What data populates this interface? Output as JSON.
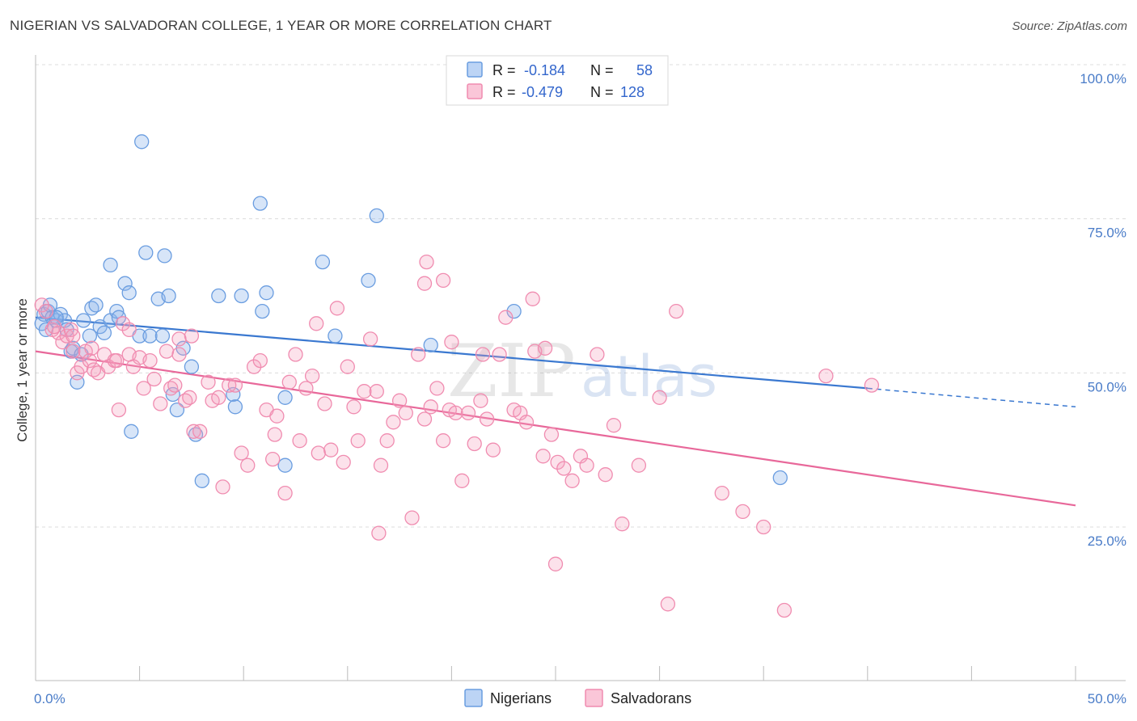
{
  "header": {
    "title": "NIGERIAN VS SALVADORAN COLLEGE, 1 YEAR OR MORE CORRELATION CHART",
    "source": "Source: ZipAtlas.com"
  },
  "watermark": {
    "part1": "ZIP",
    "part2": "atlas"
  },
  "legend": {
    "rows": [
      {
        "r_label": "R =",
        "r_value": "-0.184",
        "n_label": "N =",
        "n_value": "58",
        "color": "#6a9de0"
      },
      {
        "r_label": "R =",
        "r_value": "-0.479",
        "n_label": "N =",
        "n_value": "128",
        "color": "#f08cb0"
      }
    ]
  },
  "bottom_legend": [
    {
      "label": "Nigerians",
      "color": "#6a9de0"
    },
    {
      "label": "Salvadorans",
      "color": "#f08cb0"
    }
  ],
  "chart_data": {
    "type": "scatter",
    "xlabel": "",
    "ylabel": "College, 1 year or more",
    "xlim": [
      0,
      50
    ],
    "ylim": [
      0,
      105
    ],
    "x_tick_labels": [
      "0.0%",
      "50.0%"
    ],
    "y_ticks": [
      25,
      50,
      75,
      100
    ],
    "y_tick_labels": [
      "25.0%",
      "50.0%",
      "75.0%",
      "100.0%"
    ],
    "grid": true,
    "series": [
      {
        "name": "Nigerians",
        "color": "#6a9de0",
        "points": [
          [
            0.3,
            58
          ],
          [
            0.4,
            59.5
          ],
          [
            0.6,
            60
          ],
          [
            0.7,
            61
          ],
          [
            0.8,
            59
          ],
          [
            1,
            58.5
          ],
          [
            1.2,
            59.5
          ],
          [
            1.4,
            58.5
          ],
          [
            1.5,
            57
          ],
          [
            1.7,
            53.5
          ],
          [
            1.8,
            54
          ],
          [
            2,
            48.5
          ],
          [
            2.2,
            53
          ],
          [
            2.3,
            58.5
          ],
          [
            2.6,
            56
          ],
          [
            2.7,
            60.5
          ],
          [
            2.9,
            61
          ],
          [
            3.1,
            57.5
          ],
          [
            3.3,
            56.5
          ],
          [
            3.6,
            58.5
          ],
          [
            3.9,
            60
          ],
          [
            4,
            59
          ],
          [
            4.3,
            64.5
          ],
          [
            4.5,
            63
          ],
          [
            5,
            56
          ],
          [
            5.1,
            87.5
          ],
          [
            5.5,
            56
          ],
          [
            5.9,
            62
          ],
          [
            6.1,
            56
          ],
          [
            6.4,
            62.5
          ],
          [
            6.6,
            46.5
          ],
          [
            6.8,
            44
          ],
          [
            7.1,
            54
          ],
          [
            7.5,
            51
          ],
          [
            7.7,
            40
          ],
          [
            8,
            32.5
          ],
          [
            8.8,
            62.5
          ],
          [
            9.5,
            46.5
          ],
          [
            9.6,
            44.5
          ],
          [
            9.9,
            62.5
          ],
          [
            10.8,
            77.5
          ],
          [
            10.9,
            60
          ],
          [
            11.1,
            63
          ],
          [
            12,
            46
          ],
          [
            12,
            35
          ],
          [
            13.8,
            68
          ],
          [
            14.4,
            56
          ],
          [
            16,
            65
          ],
          [
            16.4,
            75.5
          ],
          [
            19,
            54.5
          ],
          [
            23,
            60
          ],
          [
            35.8,
            33
          ],
          [
            3.6,
            67.5
          ],
          [
            6.2,
            69
          ],
          [
            5.3,
            69.5
          ],
          [
            1,
            59
          ],
          [
            0.5,
            57
          ],
          [
            4.6,
            40.5
          ]
        ]
      },
      {
        "name": "Salvadorans",
        "color": "#f08cb0",
        "points": [
          [
            0.3,
            61
          ],
          [
            0.5,
            60
          ],
          [
            0.8,
            57
          ],
          [
            1.1,
            56.5
          ],
          [
            1.3,
            55
          ],
          [
            1.5,
            56
          ],
          [
            1.7,
            57
          ],
          [
            1.8,
            53.5
          ],
          [
            2,
            50
          ],
          [
            2.2,
            51
          ],
          [
            2.4,
            53.5
          ],
          [
            2.6,
            52
          ],
          [
            2.8,
            50.5
          ],
          [
            3,
            50
          ],
          [
            3.3,
            53
          ],
          [
            3.5,
            51
          ],
          [
            3.8,
            52
          ],
          [
            4,
            44
          ],
          [
            4.2,
            58
          ],
          [
            4.5,
            53
          ],
          [
            4.7,
            51
          ],
          [
            5,
            52.5
          ],
          [
            5.2,
            47.5
          ],
          [
            5.5,
            52
          ],
          [
            5.7,
            49
          ],
          [
            6,
            45
          ],
          [
            6.3,
            53.5
          ],
          [
            6.5,
            47.5
          ],
          [
            6.7,
            48
          ],
          [
            6.9,
            55.5
          ],
          [
            7.2,
            45.5
          ],
          [
            7.4,
            46
          ],
          [
            7.6,
            40.5
          ],
          [
            7.9,
            40.5
          ],
          [
            8.3,
            48.5
          ],
          [
            8.5,
            45.5
          ],
          [
            8.8,
            46
          ],
          [
            9,
            31.5
          ],
          [
            9.3,
            48
          ],
          [
            9.6,
            48
          ],
          [
            9.9,
            37
          ],
          [
            10.2,
            35
          ],
          [
            10.5,
            51
          ],
          [
            10.8,
            52
          ],
          [
            11.1,
            44
          ],
          [
            11.4,
            36
          ],
          [
            11.6,
            43
          ],
          [
            12,
            30.5
          ],
          [
            12.2,
            48.5
          ],
          [
            12.5,
            53
          ],
          [
            12.7,
            39
          ],
          [
            13,
            47.5
          ],
          [
            13.3,
            49.5
          ],
          [
            13.6,
            37
          ],
          [
            13.9,
            45
          ],
          [
            14.2,
            37.5
          ],
          [
            14.5,
            60.5
          ],
          [
            14.8,
            35.5
          ],
          [
            15,
            51
          ],
          [
            15.3,
            44.5
          ],
          [
            15.5,
            39
          ],
          [
            15.8,
            47
          ],
          [
            16.1,
            55.5
          ],
          [
            16.4,
            47
          ],
          [
            16.6,
            35
          ],
          [
            16.9,
            39
          ],
          [
            17.2,
            42
          ],
          [
            17.5,
            45.5
          ],
          [
            17.8,
            43.5
          ],
          [
            18.1,
            26.5
          ],
          [
            18.4,
            53
          ],
          [
            18.7,
            42.5
          ],
          [
            19,
            44.5
          ],
          [
            19.3,
            47.5
          ],
          [
            19.6,
            39
          ],
          [
            19.9,
            44
          ],
          [
            20.2,
            43.5
          ],
          [
            20.5,
            32.5
          ],
          [
            20.8,
            43.5
          ],
          [
            21.1,
            38.5
          ],
          [
            21.4,
            45.5
          ],
          [
            21.7,
            42.5
          ],
          [
            22,
            37.5
          ],
          [
            22.3,
            53
          ],
          [
            22.6,
            59
          ],
          [
            23,
            44
          ],
          [
            23.3,
            43.5
          ],
          [
            23.6,
            42
          ],
          [
            24,
            53.5
          ],
          [
            24.4,
            36.5
          ],
          [
            24.8,
            40
          ],
          [
            25.1,
            35.5
          ],
          [
            25.4,
            34.5
          ],
          [
            25.8,
            32.5
          ],
          [
            26.2,
            36.5
          ],
          [
            26.5,
            35
          ],
          [
            27,
            53
          ],
          [
            27.4,
            33.5
          ],
          [
            27.8,
            41.5
          ],
          [
            28.2,
            25.5
          ],
          [
            29,
            35
          ],
          [
            30,
            46
          ],
          [
            30.4,
            12.5
          ],
          [
            30.8,
            60
          ],
          [
            33,
            30.5
          ],
          [
            34,
            27.5
          ],
          [
            35,
            25
          ],
          [
            36,
            11.5
          ],
          [
            38,
            49.5
          ],
          [
            40.2,
            48
          ],
          [
            16.5,
            24
          ],
          [
            25,
            19
          ],
          [
            18.7,
            64.5
          ],
          [
            19.6,
            65
          ],
          [
            18.8,
            68
          ],
          [
            23.9,
            62
          ],
          [
            4.5,
            57
          ],
          [
            6.9,
            53
          ],
          [
            11.5,
            40
          ],
          [
            13.5,
            58
          ],
          [
            1.8,
            56
          ],
          [
            2.7,
            54
          ],
          [
            0.9,
            57.5
          ],
          [
            3.9,
            52
          ],
          [
            7.5,
            56
          ],
          [
            20,
            55
          ],
          [
            21.5,
            53
          ],
          [
            24.5,
            54
          ]
        ]
      }
    ],
    "trendlines": [
      {
        "series": "Nigerians",
        "x_start": 0,
        "y_start": 59,
        "x_end": 40,
        "y_end": 47.5,
        "dashed_to_x": 50,
        "dashed_to_y": 44.5
      },
      {
        "series": "Salvadorans",
        "x_start": 0,
        "y_start": 53.5,
        "x_end": 50,
        "y_end": 28.5
      }
    ]
  }
}
